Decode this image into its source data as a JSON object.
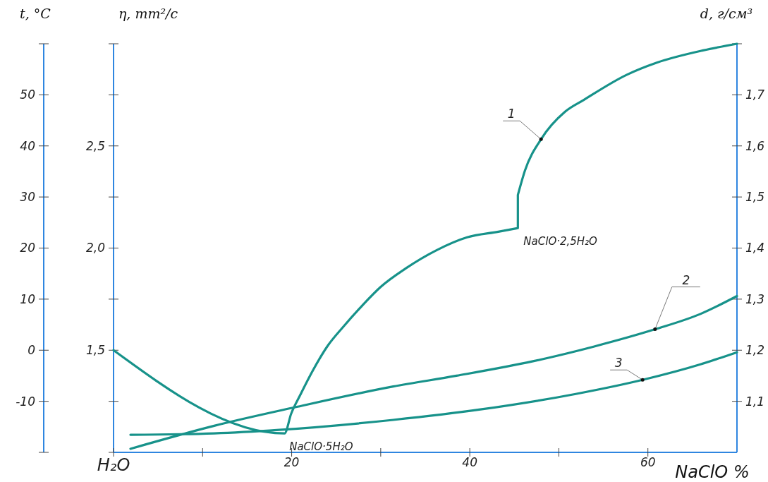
{
  "chart_data": {
    "type": "line",
    "xlabel": "NaClO %",
    "ylabel": "t, °C",
    "y2label": "η, mm²/c",
    "y3label": "d, г/см³",
    "xlim": [
      0,
      70
    ],
    "xticks": [
      {
        "value": 0,
        "label": "H₂O"
      },
      {
        "value": 10,
        "label": null
      },
      20,
      {
        "value": 30,
        "label": null
      },
      40,
      {
        "value": 50,
        "label": null
      },
      60
    ],
    "ylim": [
      -20,
      60
    ],
    "yticks": [
      {
        "value": -20,
        "label": null
      },
      -10,
      0,
      10,
      20,
      30,
      40,
      50,
      {
        "value": 60,
        "label": null
      }
    ],
    "y2lim": [
      1.0,
      3.0
    ],
    "y2ticks": [
      {
        "value": 1.0,
        "label": null
      },
      {
        "value": 1.25,
        "label": null
      },
      {
        "value": 1.5,
        "label": "1,5"
      },
      {
        "value": 1.75,
        "label": null
      },
      {
        "value": 2.0,
        "label": "2,0"
      },
      {
        "value": 2.25,
        "label": null
      },
      {
        "value": 2.5,
        "label": "2,5"
      },
      {
        "value": 2.75,
        "label": null
      },
      {
        "value": 3.0,
        "label": null
      }
    ],
    "y3lim": [
      1.0,
      1.8
    ],
    "y3ticks": [
      {
        "value": 1.1,
        "label": "1,1"
      },
      {
        "value": 1.2,
        "label": "1,2"
      },
      {
        "value": 1.3,
        "label": "1,3"
      },
      {
        "value": 1.4,
        "label": "1,4"
      },
      {
        "value": 1.5,
        "label": "1,5"
      },
      {
        "value": 1.6,
        "label": "1,6"
      },
      {
        "value": 1.7,
        "label": "1,7"
      },
      {
        "value": 1.8,
        "label": null
      }
    ],
    "grid": false,
    "legend": false,
    "marker": "none",
    "line_style": "solid",
    "series": [
      {
        "name": "1",
        "color": "#17928a",
        "x": [
          0,
          19.2,
          19.95,
          20.98,
          22.4,
          24.1,
          25.8,
          27.9,
          30.0,
          32.8,
          36.3,
          39.7,
          43.2,
          45.4,
          45.4,
          46.2,
          48.0,
          50.7,
          52.8,
          57.6,
          61.0,
          66.2,
          70
        ],
        "values": [
          0,
          -16.3,
          -12.4,
          -8.7,
          -3.9,
          1.0,
          4.6,
          8.7,
          12.4,
          16.0,
          19.6,
          22.1,
          23.2,
          23.9,
          30.4,
          35.2,
          41.3,
          46.7,
          49.0,
          53.9,
          56.3,
          58.7,
          60.0
        ]
      },
      {
        "name": "2",
        "color": "#17928a",
        "axis": "y3",
        "x": [
          1.9,
          11.3,
          20.3,
          31.4,
          38.5,
          47.0,
          53.9,
          60.8,
          65.9,
          70
        ],
        "values": [
          1.007,
          1.052,
          1.088,
          1.129,
          1.15,
          1.178,
          1.207,
          1.241,
          1.271,
          1.306
        ]
      },
      {
        "name": "3",
        "color": "#17928a",
        "axis": "y2",
        "x": [
          1.9,
          11.3,
          18.6,
          31.4,
          41.2,
          51.9,
          59.4,
          65.9,
          70
        ],
        "values": [
          1.086,
          1.093,
          1.11,
          1.159,
          1.21,
          1.286,
          1.355,
          1.431,
          1.49
        ]
      }
    ],
    "annotations": [
      {
        "text": "NaClO·5H₂O",
        "x": 19.1,
        "y": -16.3
      },
      {
        "text": "NaClO·2,5H₂O",
        "x": 45.4,
        "y": 23.9
      }
    ]
  }
}
